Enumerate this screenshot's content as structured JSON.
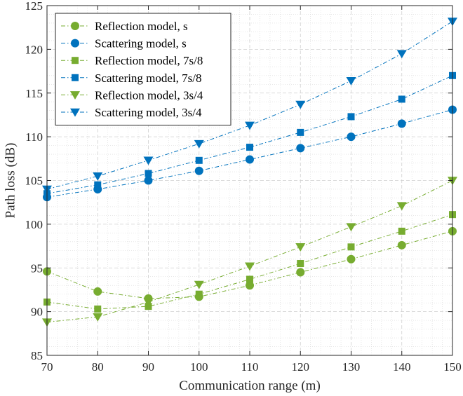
{
  "chart_data": {
    "type": "line",
    "title": "",
    "xlabel": "Communication range (m)",
    "ylabel": "Path loss (dB)",
    "xlim": [
      70,
      150
    ],
    "ylim": [
      85,
      125
    ],
    "xticks": [
      70,
      80,
      90,
      100,
      110,
      120,
      130,
      140,
      150
    ],
    "yticks": [
      85,
      90,
      95,
      100,
      105,
      110,
      115,
      120,
      125
    ],
    "grid": true,
    "minor_grid": true,
    "legend_position": "top-left",
    "x": [
      70,
      80,
      90,
      100,
      110,
      120,
      130,
      140,
      150
    ],
    "series": [
      {
        "name": "Reflection model, s",
        "color": "#77ac30",
        "marker": "circle",
        "values": [
          94.6,
          92.3,
          91.5,
          91.7,
          93.0,
          94.5,
          96.0,
          97.6,
          99.2
        ]
      },
      {
        "name": "Scattering model, s",
        "color": "#0072bd",
        "marker": "circle",
        "values": [
          103.1,
          104.0,
          105.0,
          106.1,
          107.4,
          108.7,
          110.0,
          111.5,
          113.1
        ]
      },
      {
        "name": "Reflection model, 7s/8",
        "color": "#77ac30",
        "marker": "square",
        "values": [
          91.1,
          90.3,
          90.6,
          92.0,
          93.7,
          95.5,
          97.4,
          99.2,
          101.1
        ]
      },
      {
        "name": "Scattering model, 7s/8",
        "color": "#0072bd",
        "marker": "square",
        "values": [
          103.5,
          104.5,
          105.8,
          107.3,
          108.8,
          110.5,
          112.3,
          114.3,
          117.0
        ]
      },
      {
        "name": "Reflection model, 3s/4",
        "color": "#77ac30",
        "marker": "triangle-down",
        "values": [
          88.8,
          89.4,
          91.1,
          93.1,
          95.2,
          97.4,
          99.7,
          102.1,
          105.0
        ]
      },
      {
        "name": "Scattering model, 3s/4",
        "color": "#0072bd",
        "marker": "triangle-down",
        "values": [
          104.0,
          105.5,
          107.3,
          109.2,
          111.3,
          113.7,
          116.4,
          119.5,
          123.2
        ]
      }
    ]
  }
}
